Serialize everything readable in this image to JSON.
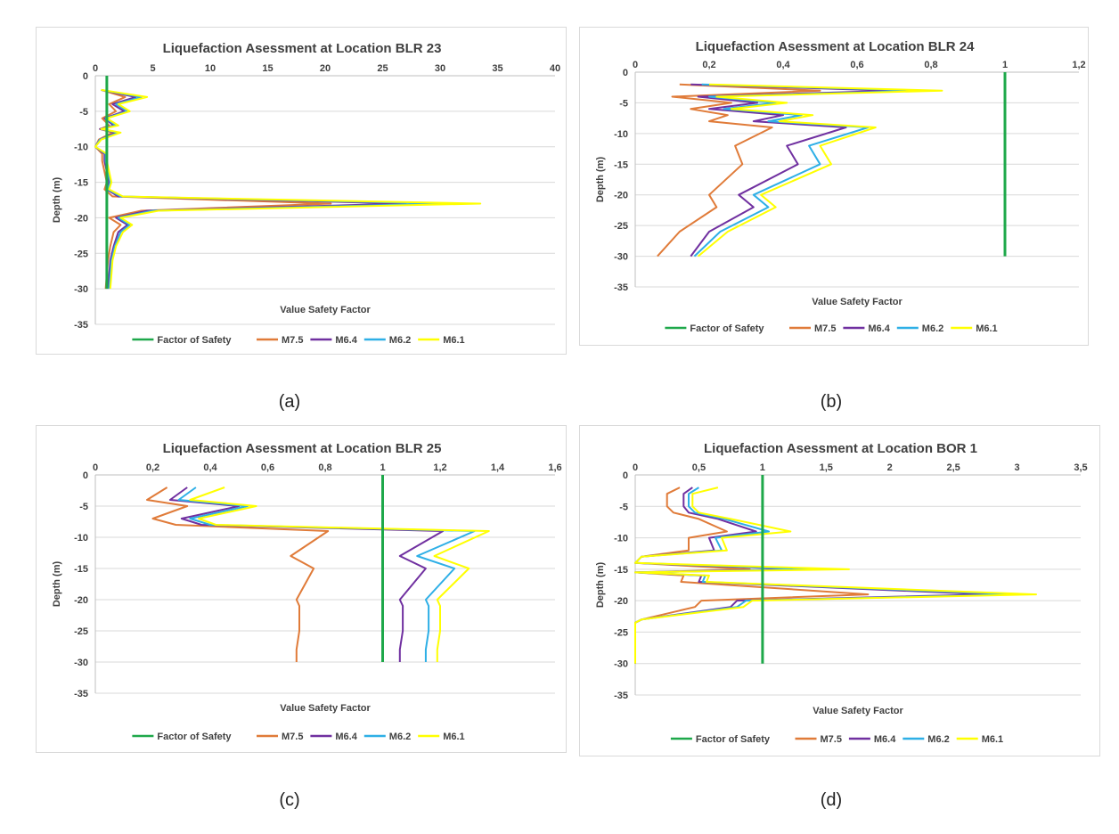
{
  "captions": [
    "(a)",
    "(b)",
    "(c)",
    "(d)"
  ],
  "colors": {
    "Factor of Safety": "#1ea84a",
    "M7.5": "#e07b39",
    "M6.4": "#7030a0",
    "M6.2": "#2eafe6",
    "M6.1": "#ffff00"
  },
  "chart_data": [
    {
      "type": "line",
      "title": "Liquefaction Asessment at Location BLR 23",
      "xlabel": "Value Safety Factor",
      "ylabel": "Depth (m)",
      "xlim": [
        0,
        40
      ],
      "ylim": [
        -35,
        0
      ],
      "xticks": [
        "0",
        "5",
        "10",
        "15",
        "20",
        "25",
        "30",
        "35",
        "40"
      ],
      "yticks": [
        "0",
        "-5",
        "-10",
        "-15",
        "-20",
        "-25",
        "-30",
        "-35"
      ],
      "grid": true,
      "legend": "bottom",
      "series": [
        {
          "name": "Factor of Safety",
          "x": [
            1,
            1
          ],
          "y": [
            0,
            -30
          ]
        },
        {
          "name": "M7.5",
          "x": [
            0.5,
            2.6,
            1.2,
            1.8,
            0.6,
            1.2,
            0.4,
            1.5,
            0.3,
            0,
            0.6,
            0.6,
            1,
            0.8,
            1.5,
            20.5,
            4,
            1.2,
            2.2,
            1.6,
            1.3,
            1.1,
            1,
            0.9
          ],
          "y": [
            -2,
            -3,
            -4,
            -5,
            -6,
            -7,
            -7.5,
            -8,
            -9,
            -10,
            -11,
            -12,
            -15,
            -16,
            -17,
            -18,
            -19,
            -20,
            -21,
            -22,
            -24,
            -26,
            -28,
            -30
          ]
        },
        {
          "name": "M6.4",
          "x": [
            0.5,
            3.5,
            1.5,
            2.5,
            0.8,
            1.6,
            0.4,
            1.8,
            0.4,
            0,
            0.8,
            0.8,
            1.2,
            1,
            2,
            27,
            4.5,
            1.8,
            2.8,
            2,
            1.6,
            1.3,
            1.2,
            1.1
          ],
          "y": [
            -2,
            -3,
            -4,
            -5,
            -6,
            -7,
            -7.5,
            -8,
            -9,
            -10,
            -11,
            -12,
            -15,
            -16,
            -17,
            -18,
            -19,
            -20,
            -21,
            -22,
            -24,
            -26,
            -28,
            -30
          ]
        },
        {
          "name": "M6.2",
          "x": [
            0.5,
            4,
            1.8,
            2.8,
            0.9,
            1.8,
            0.5,
            2,
            0.4,
            0,
            0.9,
            0.9,
            1.3,
            1.1,
            2.2,
            30.5,
            5,
            2,
            3,
            2.2,
            1.7,
            1.4,
            1.3,
            1.2
          ],
          "y": [
            -2,
            -3,
            -4,
            -5,
            -6,
            -7,
            -7.5,
            -8,
            -9,
            -10,
            -11,
            -12,
            -15,
            -16,
            -17,
            -18,
            -19,
            -20,
            -21,
            -22,
            -24,
            -26,
            -28,
            -30
          ]
        },
        {
          "name": "M6.1",
          "x": [
            0.5,
            4.5,
            2,
            3,
            1,
            2,
            0.5,
            2.2,
            0.5,
            0,
            1,
            1,
            1.4,
            1.2,
            2.4,
            33.5,
            5.5,
            2.2,
            3.2,
            2.4,
            1.8,
            1.5,
            1.4,
            1.3
          ],
          "y": [
            -2,
            -3,
            -4,
            -5,
            -6,
            -7,
            -7.5,
            -8,
            -9,
            -10,
            -11,
            -12,
            -15,
            -16,
            -17,
            -18,
            -19,
            -20,
            -21,
            -22,
            -24,
            -26,
            -28,
            -30
          ]
        }
      ]
    },
    {
      "type": "line",
      "title": "Liquefaction Asessment at Location BLR 24",
      "xlabel": "Value Safety Factor",
      "ylabel": "Depth (m)",
      "xlim": [
        0,
        1.2
      ],
      "ylim": [
        -35,
        0
      ],
      "xticks": [
        "0",
        "0,2",
        "0,4",
        "0,6",
        "0,8",
        "1",
        "1,2"
      ],
      "yticks": [
        "0",
        "-5",
        "-10",
        "-15",
        "-20",
        "-25",
        "-30",
        "-35"
      ],
      "grid": true,
      "legend": "bottom",
      "series": [
        {
          "name": "Factor of Safety",
          "x": [
            1,
            1
          ],
          "y": [
            0,
            -30
          ]
        },
        {
          "name": "M7.5",
          "x": [
            0.12,
            0.5,
            0.1,
            0.26,
            0.15,
            0.25,
            0.2,
            0.37,
            0.27,
            0.29,
            0.2,
            0.22,
            0.12,
            0.06
          ],
          "y": [
            -2,
            -3,
            -4,
            -5,
            -6,
            -7,
            -8,
            -9,
            -12,
            -15,
            -20,
            -22,
            -26,
            -30
          ]
        },
        {
          "name": "M6.4",
          "x": [
            0.15,
            0.7,
            0.17,
            0.33,
            0.2,
            0.4,
            0.32,
            0.57,
            0.41,
            0.44,
            0.28,
            0.32,
            0.2,
            0.15
          ],
          "y": [
            -2,
            -3,
            -4,
            -5,
            -6,
            -7,
            -8,
            -9,
            -12,
            -15,
            -20,
            -22,
            -26,
            -30
          ]
        },
        {
          "name": "M6.2",
          "x": [
            0.18,
            0.78,
            0.2,
            0.38,
            0.24,
            0.45,
            0.36,
            0.63,
            0.47,
            0.5,
            0.32,
            0.36,
            0.23,
            0.16
          ],
          "y": [
            -2,
            -3,
            -4,
            -5,
            -6,
            -7,
            -8,
            -9,
            -12,
            -15,
            -20,
            -22,
            -26,
            -30
          ]
        },
        {
          "name": "M6.1",
          "x": [
            0.2,
            0.83,
            0.22,
            0.41,
            0.26,
            0.48,
            0.39,
            0.65,
            0.5,
            0.53,
            0.34,
            0.38,
            0.25,
            0.17
          ],
          "y": [
            -2,
            -3,
            -4,
            -5,
            -6,
            -7,
            -8,
            -9,
            -12,
            -15,
            -20,
            -22,
            -26,
            -30
          ]
        }
      ]
    },
    {
      "type": "line",
      "title": "Liquefaction Asessment at Location BLR 25",
      "xlabel": "Value Safety Factor",
      "ylabel": "Depth (m)",
      "xlim": [
        0,
        1.6
      ],
      "ylim": [
        -35,
        0
      ],
      "xticks": [
        "0",
        "0,2",
        "0,4",
        "0,6",
        "0,8",
        "1",
        "1,2",
        "1,4",
        "1,6"
      ],
      "yticks": [
        "0",
        "-5",
        "-10",
        "-15",
        "-20",
        "-25",
        "-30",
        "-35"
      ],
      "grid": true,
      "legend": "bottom",
      "series": [
        {
          "name": "Factor of Safety",
          "x": [
            1,
            1
          ],
          "y": [
            0,
            -30
          ]
        },
        {
          "name": "M7.5",
          "x": [
            0.25,
            0.18,
            0.32,
            0.2,
            0.28,
            0.81,
            0.68,
            0.76,
            0.7,
            0.71,
            0.71,
            0.7,
            0.7
          ],
          "y": [
            -2,
            -4,
            -5,
            -7,
            -8,
            -9,
            -13,
            -15,
            -20,
            -21,
            -25,
            -28,
            -30
          ]
        },
        {
          "name": "M6.4",
          "x": [
            0.32,
            0.26,
            0.5,
            0.3,
            0.37,
            1.21,
            1.06,
            1.15,
            1.06,
            1.07,
            1.07,
            1.06,
            1.06
          ],
          "y": [
            -2,
            -4,
            -5,
            -7,
            -8,
            -9,
            -13,
            -15,
            -20,
            -21,
            -25,
            -28,
            -30
          ]
        },
        {
          "name": "M6.2",
          "x": [
            0.35,
            0.29,
            0.53,
            0.33,
            0.4,
            1.32,
            1.12,
            1.25,
            1.15,
            1.16,
            1.16,
            1.15,
            1.15
          ],
          "y": [
            -2,
            -4,
            -5,
            -7,
            -8,
            -9,
            -13,
            -15,
            -20,
            -21,
            -25,
            -28,
            -30
          ]
        },
        {
          "name": "M6.1",
          "x": [
            0.45,
            0.33,
            0.56,
            0.36,
            0.42,
            1.37,
            1.18,
            1.3,
            1.19,
            1.2,
            1.2,
            1.19,
            1.19
          ],
          "y": [
            -2,
            -4,
            -5,
            -7,
            -8,
            -9,
            -13,
            -15,
            -20,
            -21,
            -25,
            -28,
            -30
          ]
        }
      ]
    },
    {
      "type": "line",
      "title": "Liquefaction Asessment at Location BOR 1",
      "xlabel": "Value Safety Factor",
      "ylabel": "Depth (m)",
      "xlim": [
        0,
        3.5
      ],
      "ylim": [
        -35,
        0
      ],
      "xticks": [
        "0",
        "0,5",
        "1",
        "1,5",
        "2",
        "2,5",
        "3",
        "3,5"
      ],
      "yticks": [
        "0",
        "-5",
        "-10",
        "-15",
        "-20",
        "-25",
        "-30",
        "-35"
      ],
      "grid": true,
      "legend": "bottom",
      "series": [
        {
          "name": "Factor of Safety",
          "x": [
            1,
            1
          ],
          "y": [
            0,
            -30
          ]
        },
        {
          "name": "M7.5",
          "x": [
            0.35,
            0.25,
            0.25,
            0.3,
            0.5,
            0.72,
            0.42,
            0.42,
            0.05,
            0,
            0.9,
            0,
            0.38,
            0.36,
            1.83,
            0.52,
            0.47,
            0.05,
            0,
            0
          ],
          "y": [
            -2,
            -3,
            -5,
            -6,
            -7,
            -9,
            -10,
            -12,
            -13,
            -14,
            -15,
            -15.5,
            -16,
            -17,
            -19,
            -20,
            -21,
            -23,
            -23.5,
            -30
          ]
        },
        {
          "name": "M6.4",
          "x": [
            0.45,
            0.38,
            0.38,
            0.42,
            0.65,
            0.95,
            0.58,
            0.62,
            0.05,
            0,
            1.3,
            0,
            0.52,
            0.5,
            2.78,
            0.8,
            0.75,
            0.05,
            0,
            0
          ],
          "y": [
            -2,
            -3,
            -5,
            -6,
            -7,
            -9,
            -10,
            -12,
            -13,
            -14,
            -15,
            -15.5,
            -16,
            -17,
            -19,
            -20,
            -21,
            -23,
            -23.5,
            -30
          ]
        },
        {
          "name": "M6.2",
          "x": [
            0.5,
            0.42,
            0.42,
            0.47,
            0.7,
            1.05,
            0.63,
            0.68,
            0.05,
            0,
            1.42,
            0,
            0.55,
            0.53,
            3.0,
            0.87,
            0.8,
            0.05,
            0,
            0
          ],
          "y": [
            -2,
            -3,
            -5,
            -6,
            -7,
            -9,
            -10,
            -12,
            -13,
            -14,
            -15,
            -15.5,
            -16,
            -17,
            -19,
            -20,
            -21,
            -23,
            -23.5,
            -30
          ]
        },
        {
          "name": "M6.1",
          "x": [
            0.65,
            0.45,
            0.45,
            0.5,
            0.75,
            1.22,
            0.68,
            0.72,
            0.05,
            0,
            1.68,
            0,
            0.58,
            0.56,
            3.15,
            0.92,
            0.85,
            0.05,
            0,
            0
          ],
          "y": [
            -2,
            -3,
            -5,
            -6,
            -7,
            -9,
            -10,
            -12,
            -13,
            -14,
            -15,
            -15.5,
            -16,
            -17,
            -19,
            -20,
            -21,
            -23,
            -23.5,
            -30
          ]
        }
      ]
    }
  ]
}
